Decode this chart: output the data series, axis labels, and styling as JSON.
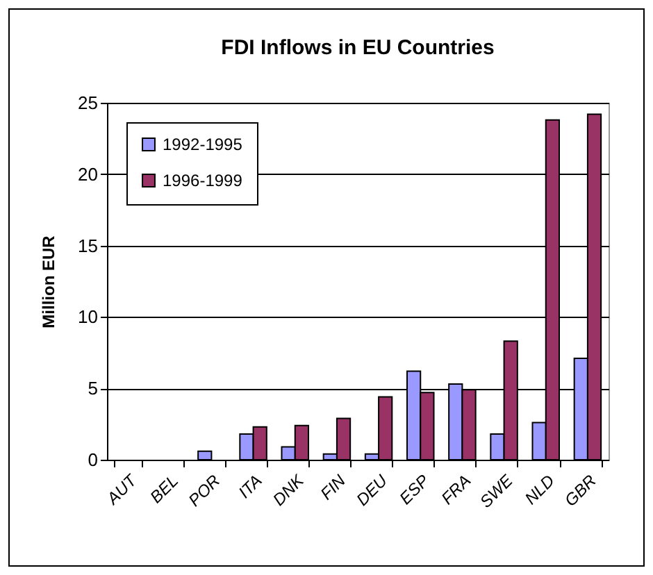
{
  "chart_data": {
    "type": "bar",
    "title": "FDI Inflows in EU Countries",
    "ylabel": "Million EUR",
    "categories": [
      "AUT",
      "BEL",
      "POR",
      "ITA",
      "DNK",
      "FIN",
      "DEU",
      "ESP",
      "FRA",
      "SWE",
      "NLD",
      "GBR"
    ],
    "series": [
      {
        "name": "1992-1995",
        "color": "#9999ff",
        "values": [
          0,
          0,
          0.6,
          1.8,
          0.9,
          0.4,
          0.4,
          6.2,
          5.3,
          1.8,
          2.6,
          7.1
        ]
      },
      {
        "name": "1996-1999",
        "color": "#993366",
        "values": [
          0,
          0,
          0,
          2.3,
          2.4,
          2.9,
          4.4,
          4.7,
          4.9,
          8.3,
          23.8,
          24.2
        ]
      }
    ],
    "ylim": [
      0,
      25
    ],
    "yticks": [
      0,
      5,
      10,
      15,
      20,
      25
    ],
    "grid": "y",
    "legend": "top left"
  }
}
